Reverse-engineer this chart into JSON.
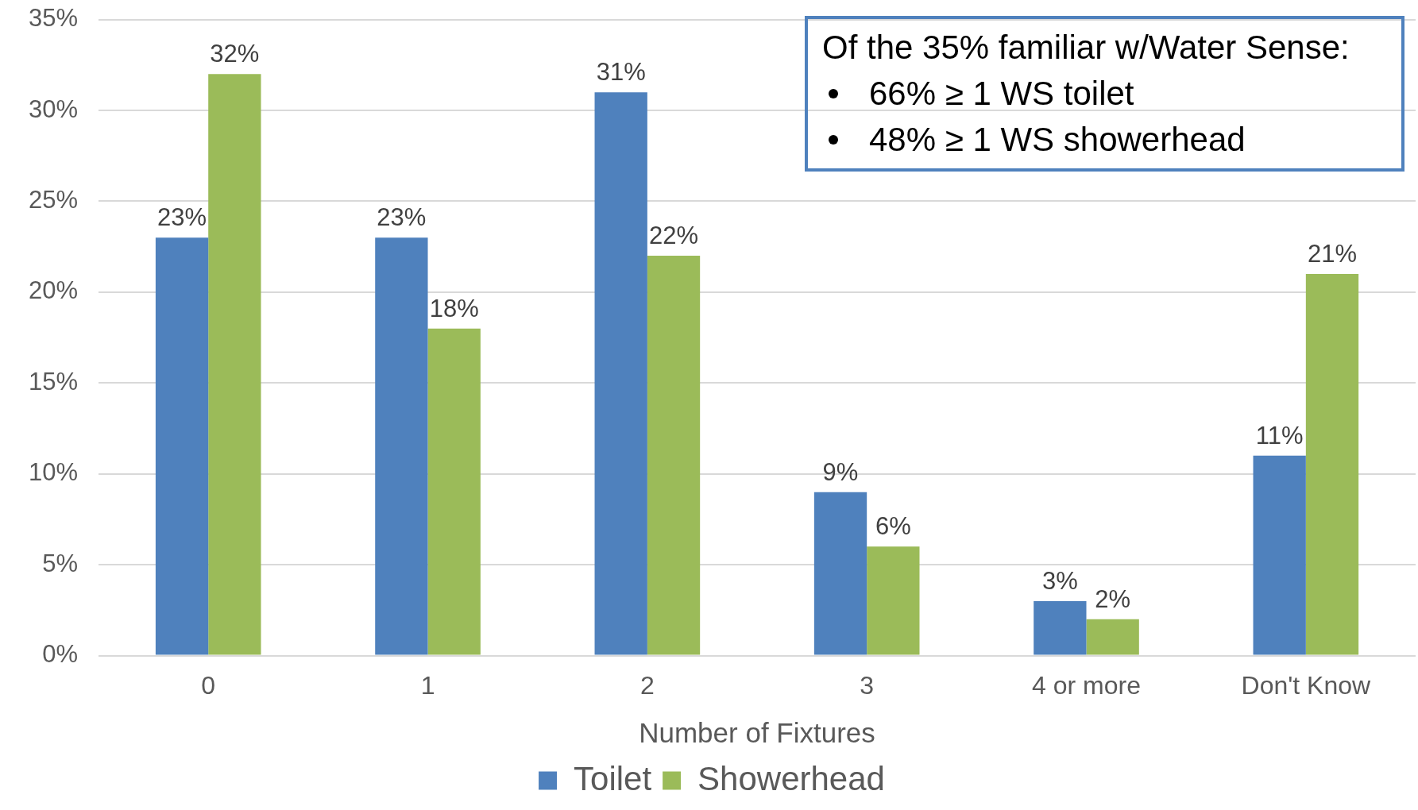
{
  "chart_data": {
    "type": "bar",
    "categories": [
      "0",
      "1",
      "2",
      "3",
      "4 or more",
      "Don't Know"
    ],
    "series": [
      {
        "name": "Toilet",
        "color": "#4f81bd",
        "values": [
          23,
          23,
          31,
          9,
          3,
          11
        ],
        "value_labels": [
          "23%",
          "23%",
          "31%",
          "9%",
          "3%",
          "11%"
        ]
      },
      {
        "name": "Showerhead",
        "color": "#9bbb59",
        "values": [
          32,
          18,
          22,
          6,
          2,
          21
        ],
        "value_labels": [
          "32%",
          "18%",
          "22%",
          "6%",
          "2%",
          "21%"
        ]
      }
    ],
    "xlabel": "Number of Fixtures",
    "ylim": [
      0,
      35
    ],
    "yticks": [
      {
        "value": 0,
        "label": "0%"
      },
      {
        "value": 5,
        "label": "5%"
      },
      {
        "value": 10,
        "label": "10%"
      },
      {
        "value": 15,
        "label": "15%"
      },
      {
        "value": 20,
        "label": "20%"
      },
      {
        "value": 25,
        "label": "25%"
      },
      {
        "value": 30,
        "label": "30%"
      },
      {
        "value": 35,
        "label": "35%"
      }
    ],
    "grid": "y",
    "legend": "bottom",
    "annotations": [
      "Of the 35% familiar w/Water Sense:",
      "66% ≥ 1 WS toilet",
      "48% ≥ 1 WS showerhead"
    ]
  }
}
